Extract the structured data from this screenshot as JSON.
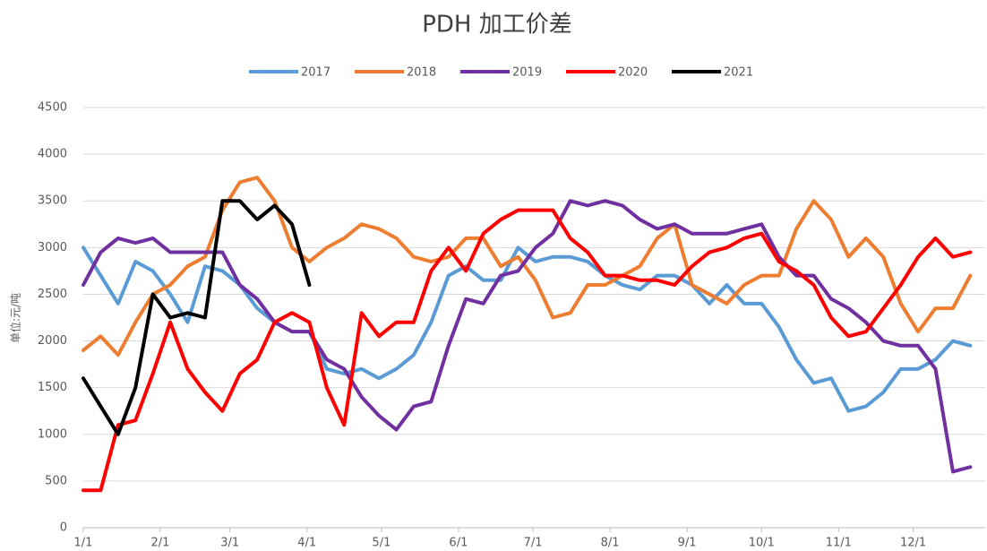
{
  "chart_data": {
    "type": "line",
    "title": "PDH 加工价差",
    "ylabel": "单位:元/吨",
    "x": [
      0,
      7,
      14,
      21,
      28,
      35,
      42,
      49,
      56,
      63,
      70,
      77,
      84,
      91,
      98,
      105,
      112,
      119,
      126,
      133,
      140,
      147,
      154,
      161,
      168,
      175,
      182,
      189,
      196,
      203,
      210,
      217,
      224,
      231,
      238,
      245,
      252,
      259,
      266,
      273,
      280,
      287,
      294,
      301,
      308,
      315,
      322,
      329,
      336,
      343,
      350,
      357
    ],
    "xlim": [
      0,
      363
    ],
    "xticks": [
      {
        "value": 0,
        "label": "1/1"
      },
      {
        "value": 31,
        "label": "2/1"
      },
      {
        "value": 59,
        "label": "3/1"
      },
      {
        "value": 90,
        "label": "4/1"
      },
      {
        "value": 120,
        "label": "5/1"
      },
      {
        "value": 151,
        "label": "6/1"
      },
      {
        "value": 181,
        "label": "7/1"
      },
      {
        "value": 212,
        "label": "8/1"
      },
      {
        "value": 243,
        "label": "9/1"
      },
      {
        "value": 273,
        "label": "10/1"
      },
      {
        "value": 304,
        "label": "11/1"
      },
      {
        "value": 334,
        "label": "12/1"
      }
    ],
    "ylim": [
      0,
      4500
    ],
    "yticks": [
      0,
      500,
      1000,
      1500,
      2000,
      2500,
      3000,
      3500,
      4000,
      4500
    ],
    "grid": true,
    "legend": "top",
    "series": [
      {
        "name": "2017",
        "color": "#5b9bd5",
        "values": [
          3000,
          2700,
          2400,
          2850,
          2750,
          2500,
          2200,
          2800,
          2750,
          2600,
          2350,
          2200,
          2100,
          2100,
          1700,
          1650,
          1700,
          1600,
          1700,
          1850,
          2200,
          2700,
          2800,
          2650,
          2650,
          3000,
          2850,
          2900,
          2900,
          2850,
          2700,
          2600,
          2550,
          2700,
          2700,
          2600,
          2400,
          2600,
          2400,
          2400,
          2150,
          1800,
          1550,
          1600,
          1250,
          1300,
          1450,
          1700,
          1700,
          1800,
          2000,
          1950
        ]
      },
      {
        "name": "2018",
        "color": "#ed7d31",
        "values": [
          1900,
          2050,
          1850,
          2200,
          2500,
          2600,
          2800,
          2900,
          3400,
          3700,
          3750,
          3500,
          3000,
          2850,
          3000,
          3100,
          3250,
          3200,
          3100,
          2900,
          2850,
          2900,
          3100,
          3100,
          2800,
          2900,
          2650,
          2250,
          2300,
          2600,
          2600,
          2700,
          2800,
          3100,
          3250,
          2600,
          2500,
          2400,
          2600,
          2700,
          2700,
          3200,
          3500,
          3300,
          2900,
          3100,
          2900,
          2400,
          2100,
          2350,
          2350,
          2700
        ]
      },
      {
        "name": "2019",
        "color": "#7030a0",
        "values": [
          2600,
          2950,
          3100,
          3050,
          3100,
          2950,
          2950,
          2950,
          2950,
          2600,
          2450,
          2200,
          2100,
          2100,
          1800,
          1700,
          1400,
          1200,
          1050,
          1300,
          1350,
          1950,
          2450,
          2400,
          2700,
          2750,
          3000,
          3150,
          3500,
          3450,
          3500,
          3450,
          3300,
          3200,
          3250,
          3150,
          3150,
          3150,
          3200,
          3250,
          2900,
          2700,
          2700,
          2450,
          2350,
          2200,
          2000,
          1950,
          1950,
          1700,
          600,
          650
        ]
      },
      {
        "name": "2020",
        "color": "#ff0000",
        "values": [
          400,
          400,
          1100,
          1150,
          1650,
          2200,
          1700,
          1450,
          1250,
          1650,
          1800,
          2200,
          2300,
          2200,
          1500,
          1100,
          2300,
          2050,
          2200,
          2200,
          2750,
          3000,
          2750,
          3150,
          3300,
          3400,
          3400,
          3400,
          3100,
          2950,
          2700,
          2700,
          2650,
          2650,
          2600,
          2800,
          2950,
          3000,
          3100,
          3150,
          2850,
          2750,
          2600,
          2250,
          2050,
          2100,
          2350,
          2600,
          2900,
          3100,
          2900,
          2950
        ]
      },
      {
        "name": "2021",
        "color": "#000000",
        "values": [
          1600,
          1300,
          1000,
          1500,
          2500,
          2250,
          2300,
          2250,
          3500,
          3500,
          3300,
          3450,
          3250,
          2600,
          null,
          null,
          null,
          null,
          null,
          null,
          null,
          null,
          null,
          null,
          null,
          null,
          null,
          null,
          null,
          null,
          null,
          null,
          null,
          null,
          null,
          null,
          null,
          null,
          null,
          null,
          null,
          null,
          null,
          null,
          null,
          null,
          null,
          null,
          null,
          null,
          null,
          null
        ]
      }
    ]
  }
}
